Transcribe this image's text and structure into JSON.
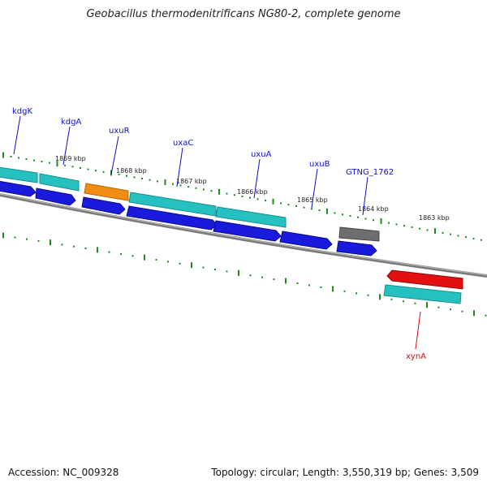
{
  "title": "Geobacillus thermodenitrificans NG80-2, complete genome",
  "footer": {
    "accession": "Accession: NC_009328",
    "summary": "Topology: circular; Length: 3,550,319 bp; Genes: 3,509"
  },
  "colors": {
    "cds_forward": "#1a1adc",
    "rna_or_other": "#25c0c0",
    "highlight": "#f08c10",
    "pseudo": "#6e6e6e",
    "special": "#e41010",
    "label_blue": "#1010c8",
    "label_red": "#d01010",
    "tick_green": "#1e8a1e",
    "backbone": "#7a7a7a"
  },
  "kbp_labels": [
    "1869 kbp",
    "1868 kbp",
    "1867 kbp",
    "1866 kbp",
    "1865 kbp",
    "1864 kbp",
    "1863 kbp"
  ],
  "genes": [
    {
      "name": "kdgK",
      "color": "#1010c8"
    },
    {
      "name": "kdgA",
      "color": "#1010c8"
    },
    {
      "name": "uxuR",
      "color": "#1010c8"
    },
    {
      "name": "uxaC",
      "color": "#1010c8"
    },
    {
      "name": "uxuA",
      "color": "#1010c8"
    },
    {
      "name": "uxuB",
      "color": "#1010c8"
    },
    {
      "name": "GTNG_1762",
      "color": "#1010c8"
    },
    {
      "name": "xynA",
      "color": "#d01010"
    }
  ]
}
